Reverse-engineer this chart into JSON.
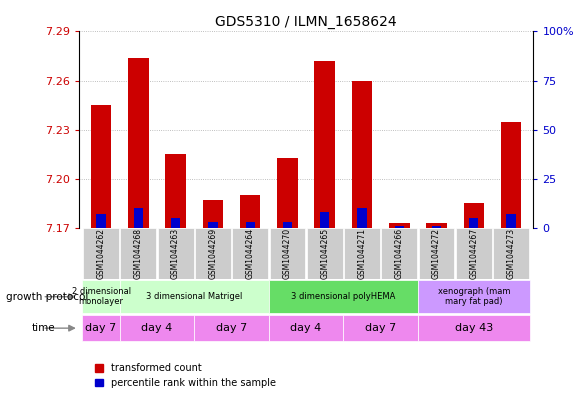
{
  "title": "GDS5310 / ILMN_1658624",
  "samples": [
    "GSM1044262",
    "GSM1044268",
    "GSM1044263",
    "GSM1044269",
    "GSM1044264",
    "GSM1044270",
    "GSM1044265",
    "GSM1044271",
    "GSM1044266",
    "GSM1044272",
    "GSM1044267",
    "GSM1044273"
  ],
  "transformed_count": [
    7.245,
    7.274,
    7.215,
    7.187,
    7.19,
    7.213,
    7.272,
    7.26,
    7.173,
    7.173,
    7.185,
    7.235
  ],
  "percentile_rank": [
    7,
    10,
    5,
    3,
    3,
    3,
    8,
    10,
    1,
    1,
    5,
    7
  ],
  "y_min": 7.17,
  "y_max": 7.29,
  "y_ticks": [
    7.17,
    7.2,
    7.23,
    7.26,
    7.29
  ],
  "right_y_ticks": [
    0,
    25,
    50,
    75,
    100
  ],
  "right_y_labels": [
    "0",
    "25",
    "50",
    "75",
    "100%"
  ],
  "bar_color": "#cc0000",
  "pct_color": "#0000cc",
  "grid_color": "#aaaaaa",
  "sample_bg_color": "#cccccc",
  "growth_protocol_groups": [
    {
      "label": "2 dimensional\nmonolayer",
      "start": 0,
      "end": 1,
      "color": "#ccffcc"
    },
    {
      "label": "3 dimensional Matrigel",
      "start": 1,
      "end": 5,
      "color": "#ccffcc"
    },
    {
      "label": "3 dimensional polyHEMA",
      "start": 5,
      "end": 9,
      "color": "#66dd66"
    },
    {
      "label": "xenograph (mam\nmary fat pad)",
      "start": 9,
      "end": 12,
      "color": "#cc99ff"
    }
  ],
  "time_groups": [
    {
      "label": "day 7",
      "start": 0,
      "end": 1,
      "color": "#ee88ee"
    },
    {
      "label": "day 4",
      "start": 1,
      "end": 3,
      "color": "#ee88ee"
    },
    {
      "label": "day 7",
      "start": 3,
      "end": 5,
      "color": "#ee88ee"
    },
    {
      "label": "day 4",
      "start": 5,
      "end": 7,
      "color": "#ee88ee"
    },
    {
      "label": "day 7",
      "start": 7,
      "end": 9,
      "color": "#ee88ee"
    },
    {
      "label": "day 43",
      "start": 9,
      "end": 12,
      "color": "#ee88ee"
    }
  ],
  "bar_width": 0.55,
  "pct_bar_width": 0.25,
  "left_label_color": "#cc0000",
  "right_label_color": "#0000cc",
  "legend_labels": [
    "transformed count",
    "percentile rank within the sample"
  ]
}
